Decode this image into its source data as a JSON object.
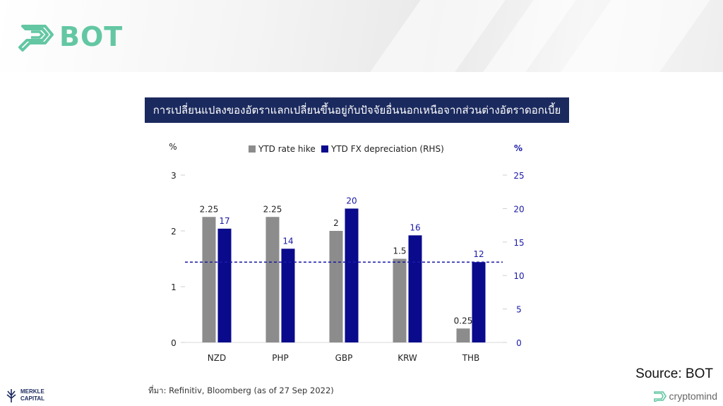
{
  "brand": {
    "name": "BOT",
    "color": "#63c7a3"
  },
  "chart_title": "การเปลี่ยนแปลงของอัตราแลกเปลี่ยนขึ้นอยู่กับปัจจัยอื่นนอกเหนือจากส่วนต่างอัตราดอกเบี้ย",
  "chart_data": {
    "type": "bar",
    "title": "การเปลี่ยนแปลงของอัตราแลกเปลี่ยนขึ้นอยู่กับปัจจัยอื่นนอกเหนือจากส่วนต่างอัตราดอกเบี้ย",
    "categories": [
      "NZD",
      "PHP",
      "GBP",
      "KRW",
      "THB"
    ],
    "series": [
      {
        "name": "YTD rate hike",
        "axis": "left",
        "color": "#8c8c8c",
        "values": [
          2.25,
          2.25,
          2,
          1.5,
          0.25
        ],
        "labels": [
          "2.25",
          "2.25",
          "2",
          "1.5",
          "0.25"
        ]
      },
      {
        "name": "YTD FX depreciation (RHS)",
        "axis": "right",
        "color": "#0a0a8c",
        "values": [
          17,
          14,
          20,
          16,
          12
        ],
        "labels": [
          "17",
          "14",
          "20",
          "16",
          "12"
        ]
      }
    ],
    "left_axis": {
      "label": "%",
      "ylim": [
        0,
        3
      ],
      "ticks": [
        "0",
        "1",
        "2",
        "3"
      ]
    },
    "right_axis": {
      "label": "%",
      "ylim": [
        0,
        25
      ],
      "ticks": [
        "0",
        "5",
        "10",
        "15",
        "20",
        "25"
      ],
      "color": "#1a1aa6"
    },
    "reference_line": {
      "axis": "right",
      "value": 12,
      "style": "dashed",
      "color": "#1a1aa6"
    },
    "legend": "top-center",
    "grid": false
  },
  "footnote": "ที่มา: Refinitiv, Bloomberg (as of 27 Sep 2022)",
  "source": "Source: BOT",
  "merkle": {
    "line1": "MERKLE",
    "line2": "CAPITAL"
  },
  "cryptomind": "cryptomind"
}
